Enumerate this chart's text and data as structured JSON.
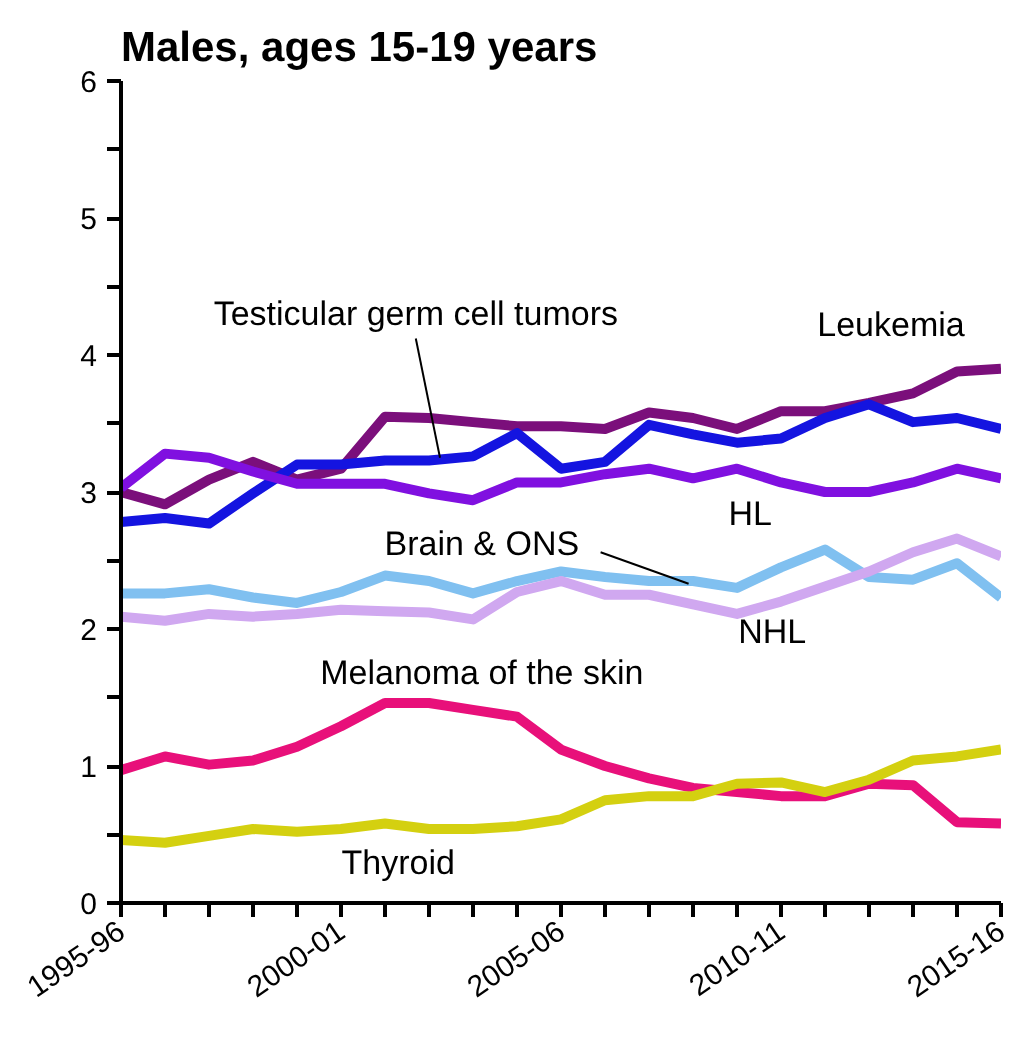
{
  "chart_data": {
    "type": "line",
    "title": "Males, ages 15-19 years",
    "categories": [
      "1995-96",
      null,
      null,
      null,
      null,
      "2000-01",
      null,
      null,
      null,
      null,
      "2005-06",
      null,
      null,
      null,
      null,
      "2010-11",
      null,
      null,
      null,
      null,
      "2015-16"
    ],
    "series": [
      {
        "name": "Leukemia",
        "color": "#7b0f7b",
        "values": [
          3.0,
          2.91,
          3.09,
          3.22,
          3.09,
          3.17,
          3.55,
          3.54,
          3.51,
          3.48,
          3.48,
          3.46,
          3.58,
          3.54,
          3.46,
          3.59,
          3.59,
          3.65,
          3.72,
          3.88,
          3.9
        ]
      },
      {
        "name": "Testicular germ cell tumors",
        "color": "#1414e0",
        "values": [
          2.78,
          2.81,
          2.77,
          2.99,
          3.2,
          3.2,
          3.23,
          3.23,
          3.26,
          3.43,
          3.17,
          3.22,
          3.49,
          3.42,
          3.36,
          3.39,
          3.54,
          3.64,
          3.51,
          3.54,
          3.46
        ]
      },
      {
        "name": "HL",
        "color": "#8010e0",
        "values": [
          3.03,
          3.28,
          3.25,
          3.15,
          3.06,
          3.06,
          3.06,
          2.99,
          2.94,
          3.07,
          3.07,
          3.13,
          3.17,
          3.1,
          3.17,
          3.07,
          3.0,
          3.0,
          3.07,
          3.17,
          3.1
        ]
      },
      {
        "name": "Brain & ONS",
        "color": "#80c0f0",
        "values": [
          2.26,
          2.26,
          2.29,
          2.23,
          2.19,
          2.27,
          2.39,
          2.35,
          2.26,
          2.35,
          2.42,
          2.38,
          2.35,
          2.35,
          2.3,
          2.45,
          2.58,
          2.38,
          2.36,
          2.48,
          2.23
        ]
      },
      {
        "name": "NHL",
        "color": "#d0a8f0",
        "values": [
          2.09,
          2.06,
          2.11,
          2.09,
          2.11,
          2.14,
          2.13,
          2.12,
          2.07,
          2.27,
          2.35,
          2.25,
          2.25,
          2.18,
          2.11,
          2.2,
          2.31,
          2.42,
          2.56,
          2.66,
          2.53
        ]
      },
      {
        "name": "Melanoma of the skin",
        "color": "#e8107a",
        "values": [
          0.97,
          1.07,
          1.01,
          1.04,
          1.14,
          1.29,
          1.46,
          1.46,
          1.41,
          1.36,
          1.12,
          1.0,
          0.91,
          0.84,
          0.81,
          0.78,
          0.78,
          0.87,
          0.86,
          0.59,
          0.58
        ]
      },
      {
        "name": "Thyroid",
        "color": "#d4d010",
        "values": [
          0.46,
          0.44,
          0.49,
          0.54,
          0.52,
          0.54,
          0.58,
          0.54,
          0.54,
          0.56,
          0.61,
          0.75,
          0.78,
          0.78,
          0.87,
          0.88,
          0.81,
          0.9,
          1.04,
          1.07,
          1.12
        ]
      }
    ],
    "ylim": [
      0,
      6
    ],
    "yticks": [
      0,
      {
        "value": 0.5,
        "label": null
      },
      1,
      {
        "value": 1.5,
        "label": null
      },
      2,
      {
        "value": 2.5,
        "label": null
      },
      3,
      {
        "value": 3.5,
        "label": null
      },
      4,
      {
        "value": 4.5,
        "label": null
      },
      5,
      {
        "value": 5.5,
        "label": null
      },
      6
    ],
    "grid": false,
    "marker": "none",
    "line_style": "solid"
  }
}
